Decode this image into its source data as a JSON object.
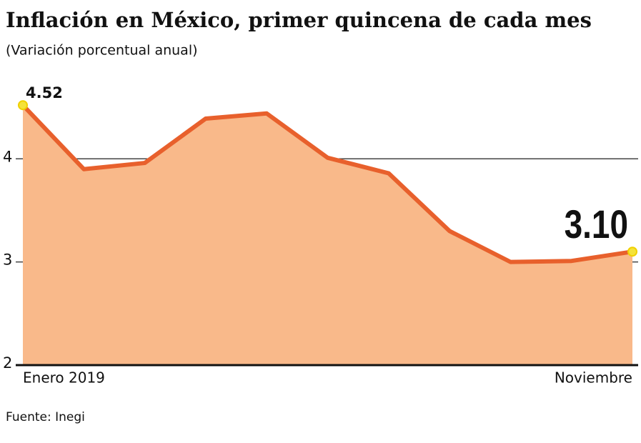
{
  "chart_data": {
    "type": "area",
    "title": "Inflación en México, primer quincena de cada mes",
    "subtitle": "(Variación porcentual anual)",
    "source": "Fuente: Inegi",
    "categories": [
      "Enero 2019",
      null,
      null,
      null,
      null,
      null,
      null,
      null,
      null,
      null,
      "Noviembre"
    ],
    "values": [
      4.52,
      3.9,
      3.96,
      4.39,
      4.44,
      4.01,
      3.86,
      3.3,
      3.0,
      3.01,
      3.1
    ],
    "value_labels": [
      "4.52",
      null,
      null,
      null,
      null,
      null,
      null,
      null,
      null,
      null,
      "3.10"
    ],
    "color": "#e8602c",
    "fill_color": "#f9b98a",
    "marker_color": "#f5e23a",
    "ylim": [
      2,
      4.75
    ],
    "yticks": [
      2,
      3,
      4
    ],
    "grid": true
  }
}
